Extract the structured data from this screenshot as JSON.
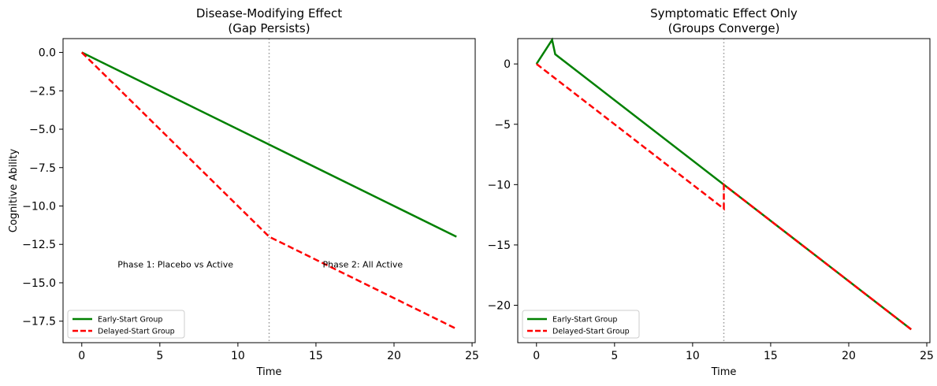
{
  "chart_data": [
    {
      "type": "line",
      "title": "Disease-Modifying Effect",
      "subtitle": "(Gap Persists)",
      "xlabel": "Time",
      "ylabel": "Cognitive Ability",
      "xlim": [
        -1.2,
        25.2
      ],
      "ylim": [
        -18.9,
        0.9
      ],
      "xticks": [
        0,
        5,
        10,
        15,
        20,
        25
      ],
      "yticks": [
        0.0,
        -2.5,
        -5.0,
        -7.5,
        -10.0,
        -12.5,
        -15.0,
        -17.5
      ],
      "xtick_labels": [
        "0",
        "5",
        "10",
        "15",
        "20",
        "25"
      ],
      "ytick_labels": [
        "0.0",
        "−2.5",
        "−5.0",
        "−7.5",
        "−10.0",
        "−12.5",
        "−15.0",
        "−17.5"
      ],
      "vline_x": 12,
      "legend": "lower-left",
      "grid": false,
      "series": [
        {
          "name": "Early-Start Group",
          "color": "#008000",
          "style": "solid",
          "x": [
            0,
            12,
            24
          ],
          "y": [
            0,
            -6,
            -12
          ]
        },
        {
          "name": "Delayed-Start Group",
          "color": "#ff0000",
          "style": "dashed",
          "x": [
            0,
            12,
            24
          ],
          "y": [
            0,
            -12,
            -18
          ]
        }
      ],
      "annotations": [
        {
          "text": "Phase 1: Placebo vs Active",
          "x": 6,
          "y": -13.8
        },
        {
          "text": "Phase 2: All Active",
          "x": 18,
          "y": -13.8
        }
      ]
    },
    {
      "type": "line",
      "title": "Symptomatic Effect Only",
      "subtitle": "(Groups Converge)",
      "xlabel": "Time",
      "ylabel": "",
      "xlim": [
        -1.2,
        25.2
      ],
      "ylim": [
        -23.1,
        2.1
      ],
      "xticks": [
        0,
        5,
        10,
        15,
        20,
        25
      ],
      "yticks": [
        0,
        -5,
        -10,
        -15,
        -20
      ],
      "xtick_labels": [
        "0",
        "5",
        "10",
        "15",
        "20",
        "25"
      ],
      "ytick_labels": [
        "0",
        "−5",
        "−10",
        "−15",
        "−20"
      ],
      "vline_x": 12,
      "legend": "lower-left",
      "grid": false,
      "series": [
        {
          "name": "Early-Start Group",
          "color": "#008000",
          "style": "solid",
          "x": [
            0,
            1,
            1.2,
            12,
            24
          ],
          "y": [
            0,
            2,
            0.8,
            -10,
            -22
          ]
        },
        {
          "name": "Delayed-Start Group",
          "color": "#ff0000",
          "style": "dashed",
          "x": [
            0,
            12,
            12,
            24
          ],
          "y": [
            0,
            -12,
            -10,
            -22
          ]
        }
      ],
      "annotations": []
    }
  ]
}
